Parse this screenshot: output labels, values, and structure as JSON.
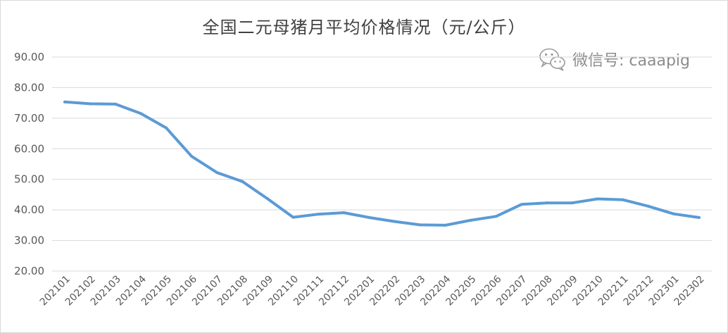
{
  "watermark": {
    "text": "微信号: caaapig",
    "icon": "wechat-icon"
  },
  "colors": {
    "line": "#5B9BD5",
    "grid": "#d9d9d9",
    "text": "#595959"
  },
  "chart_data": {
    "type": "line",
    "title": "全国二元母猪月平均价格情况（元/公斤）",
    "xlabel": "",
    "ylabel": "",
    "grid": true,
    "legend": "none",
    "ylim": [
      20,
      90
    ],
    "yticks": [
      "20.00",
      "30.00",
      "40.00",
      "50.00",
      "60.00",
      "70.00",
      "80.00",
      "90.00"
    ],
    "categories": [
      "202101",
      "202102",
      "202103",
      "202104",
      "202105",
      "202106",
      "202107",
      "202108",
      "202109",
      "202110",
      "202111",
      "202112",
      "202201",
      "202202",
      "202203",
      "202204",
      "202205",
      "202206",
      "202207",
      "202208",
      "202209",
      "202210",
      "202211",
      "202212",
      "202301",
      "202302"
    ],
    "series": [
      {
        "values": [
          75.3,
          74.7,
          74.6,
          71.5,
          66.8,
          57.5,
          52.2,
          49.3,
          43.6,
          37.6,
          38.6,
          39.1,
          37.5,
          36.2,
          35.1,
          35.0,
          36.6,
          37.9,
          41.8,
          42.3,
          42.3,
          43.6,
          43.3,
          41.2,
          38.7,
          37.5
        ]
      }
    ]
  }
}
